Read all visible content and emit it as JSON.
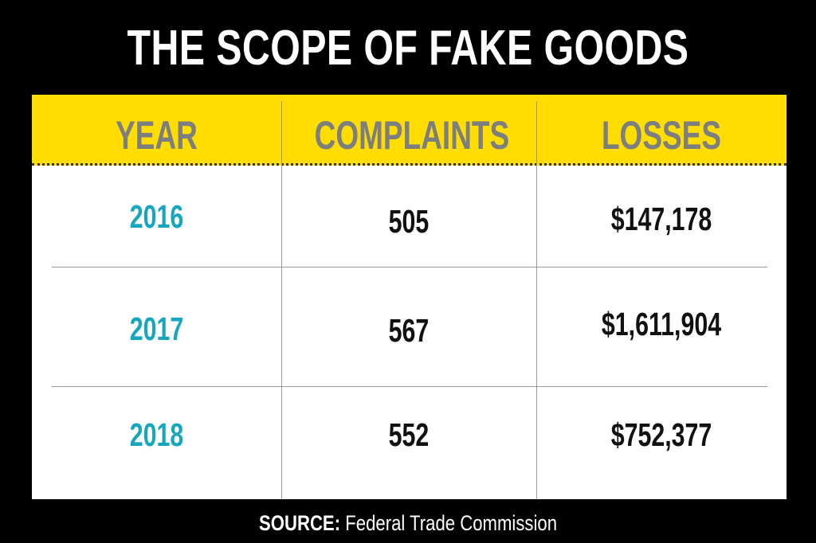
{
  "title": "THE SCOPE OF FAKE GOODS",
  "source": {
    "label": "SOURCE:",
    "text": "Federal Trade Commission"
  },
  "colors": {
    "background": "#000000",
    "header_band": "#ffdd00",
    "header_text": "#7d7e80",
    "year_text": "#16a6c0",
    "value_text": "#111111"
  },
  "chart_data": {
    "type": "table",
    "columns": [
      "YEAR",
      "COMPLAINTS",
      "LOSSES"
    ],
    "rows": [
      {
        "year": "2016",
        "complaints": "505",
        "losses": "$147,178"
      },
      {
        "year": "2017",
        "complaints": "567",
        "losses": "$1,611,904"
      },
      {
        "year": "2018",
        "complaints": "552",
        "losses": "$752,377"
      }
    ]
  }
}
